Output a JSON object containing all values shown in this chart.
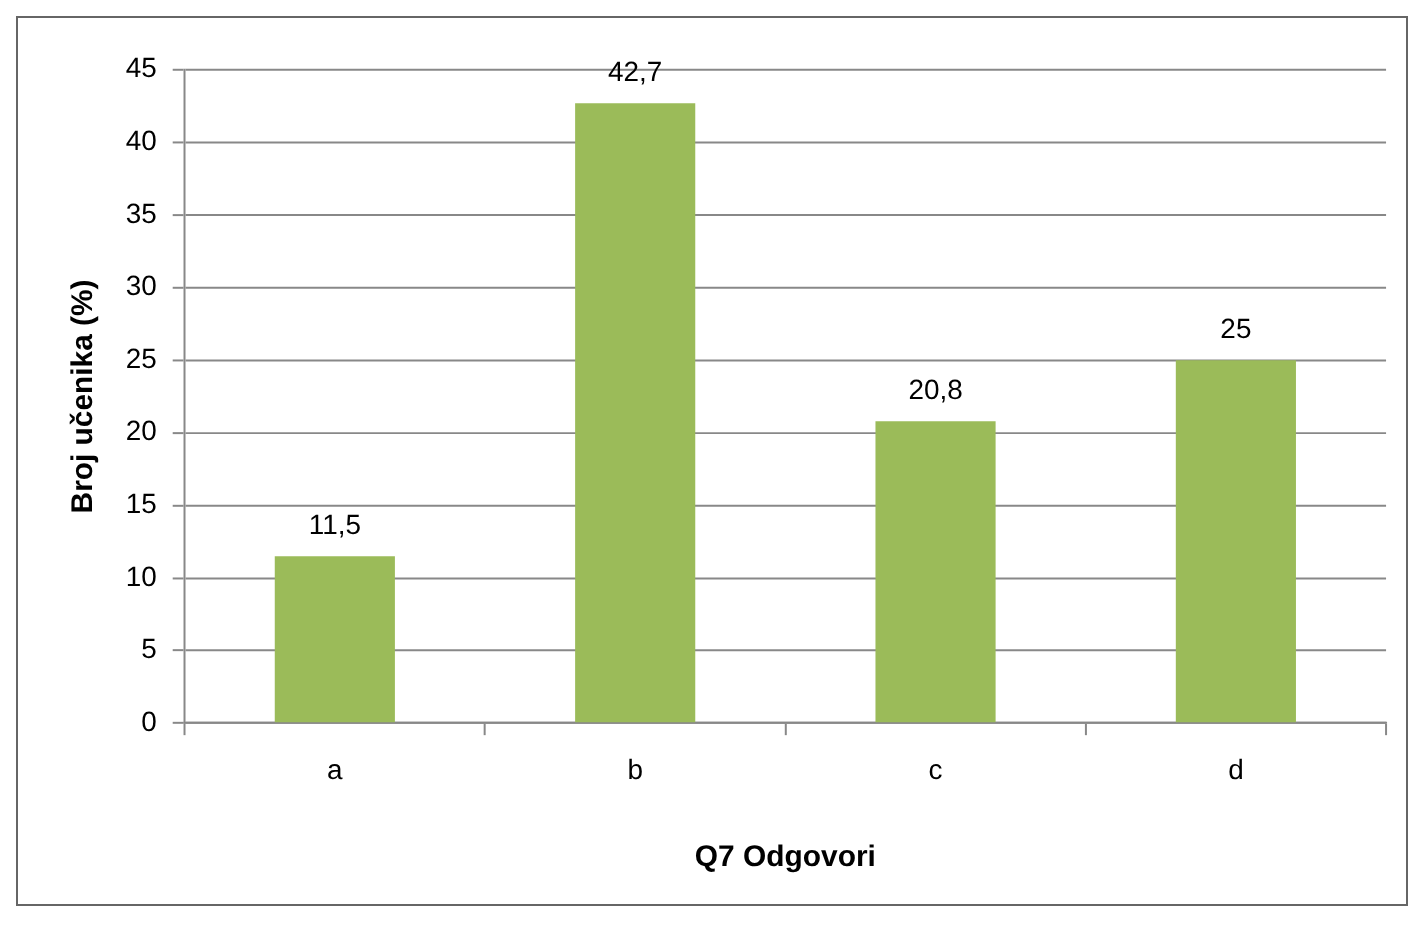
{
  "chart_data": {
    "type": "bar",
    "xlabel": "Q7 Odgovori",
    "ylabel": "Broj učenika (%)",
    "categories": [
      "a",
      "b",
      "c",
      "d"
    ],
    "values": [
      11.5,
      42.7,
      20.8,
      25
    ],
    "value_labels": [
      "11,5",
      "42,7",
      "20,8",
      "25"
    ],
    "color": "#9bbb59",
    "ylim": [
      0,
      45
    ],
    "yticks": [
      0,
      5,
      10,
      15,
      20,
      25,
      30,
      35,
      40,
      45
    ],
    "grid": "y",
    "legend": false
  }
}
